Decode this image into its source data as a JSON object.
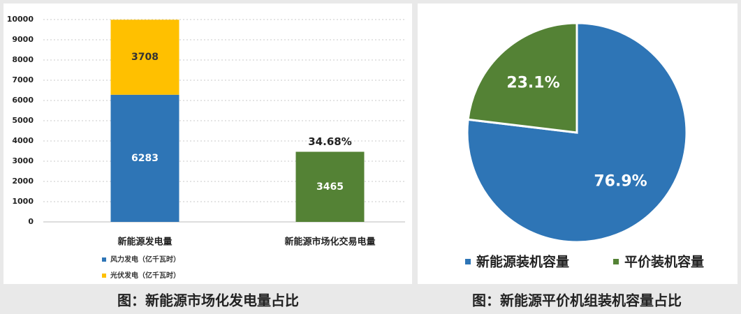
{
  "chart_data": [
    {
      "type": "bar",
      "title": "图：新能源市场化发电量占比",
      "categories": [
        "新能源发电量",
        "新能源市场化交易电量"
      ],
      "series": [
        {
          "name": "风力发电（亿千瓦时）",
          "color": "#2e75b6",
          "values": [
            6283,
            null
          ]
        },
        {
          "name": "光伏发电（亿千瓦时）",
          "color": "#ffc000",
          "values": [
            3708,
            null
          ]
        },
        {
          "color": "#548235",
          "values": [
            null,
            3465
          ]
        }
      ],
      "stacked": true,
      "annotations": [
        "34.68%"
      ],
      "ylim": [
        0,
        10000
      ],
      "yticks": [
        0,
        1000,
        2000,
        3000,
        4000,
        5000,
        6000,
        7000,
        8000,
        9000,
        10000
      ],
      "grid": true
    },
    {
      "type": "pie",
      "title": "图：新能源平价机组装机容量占比",
      "categories": [
        "新能源装机容量",
        "平价装机容量"
      ],
      "values": [
        76.9,
        23.1
      ],
      "value_labels": [
        "76.9%",
        "23.1%"
      ],
      "colors": [
        "#2e75b6",
        "#548235"
      ]
    }
  ]
}
